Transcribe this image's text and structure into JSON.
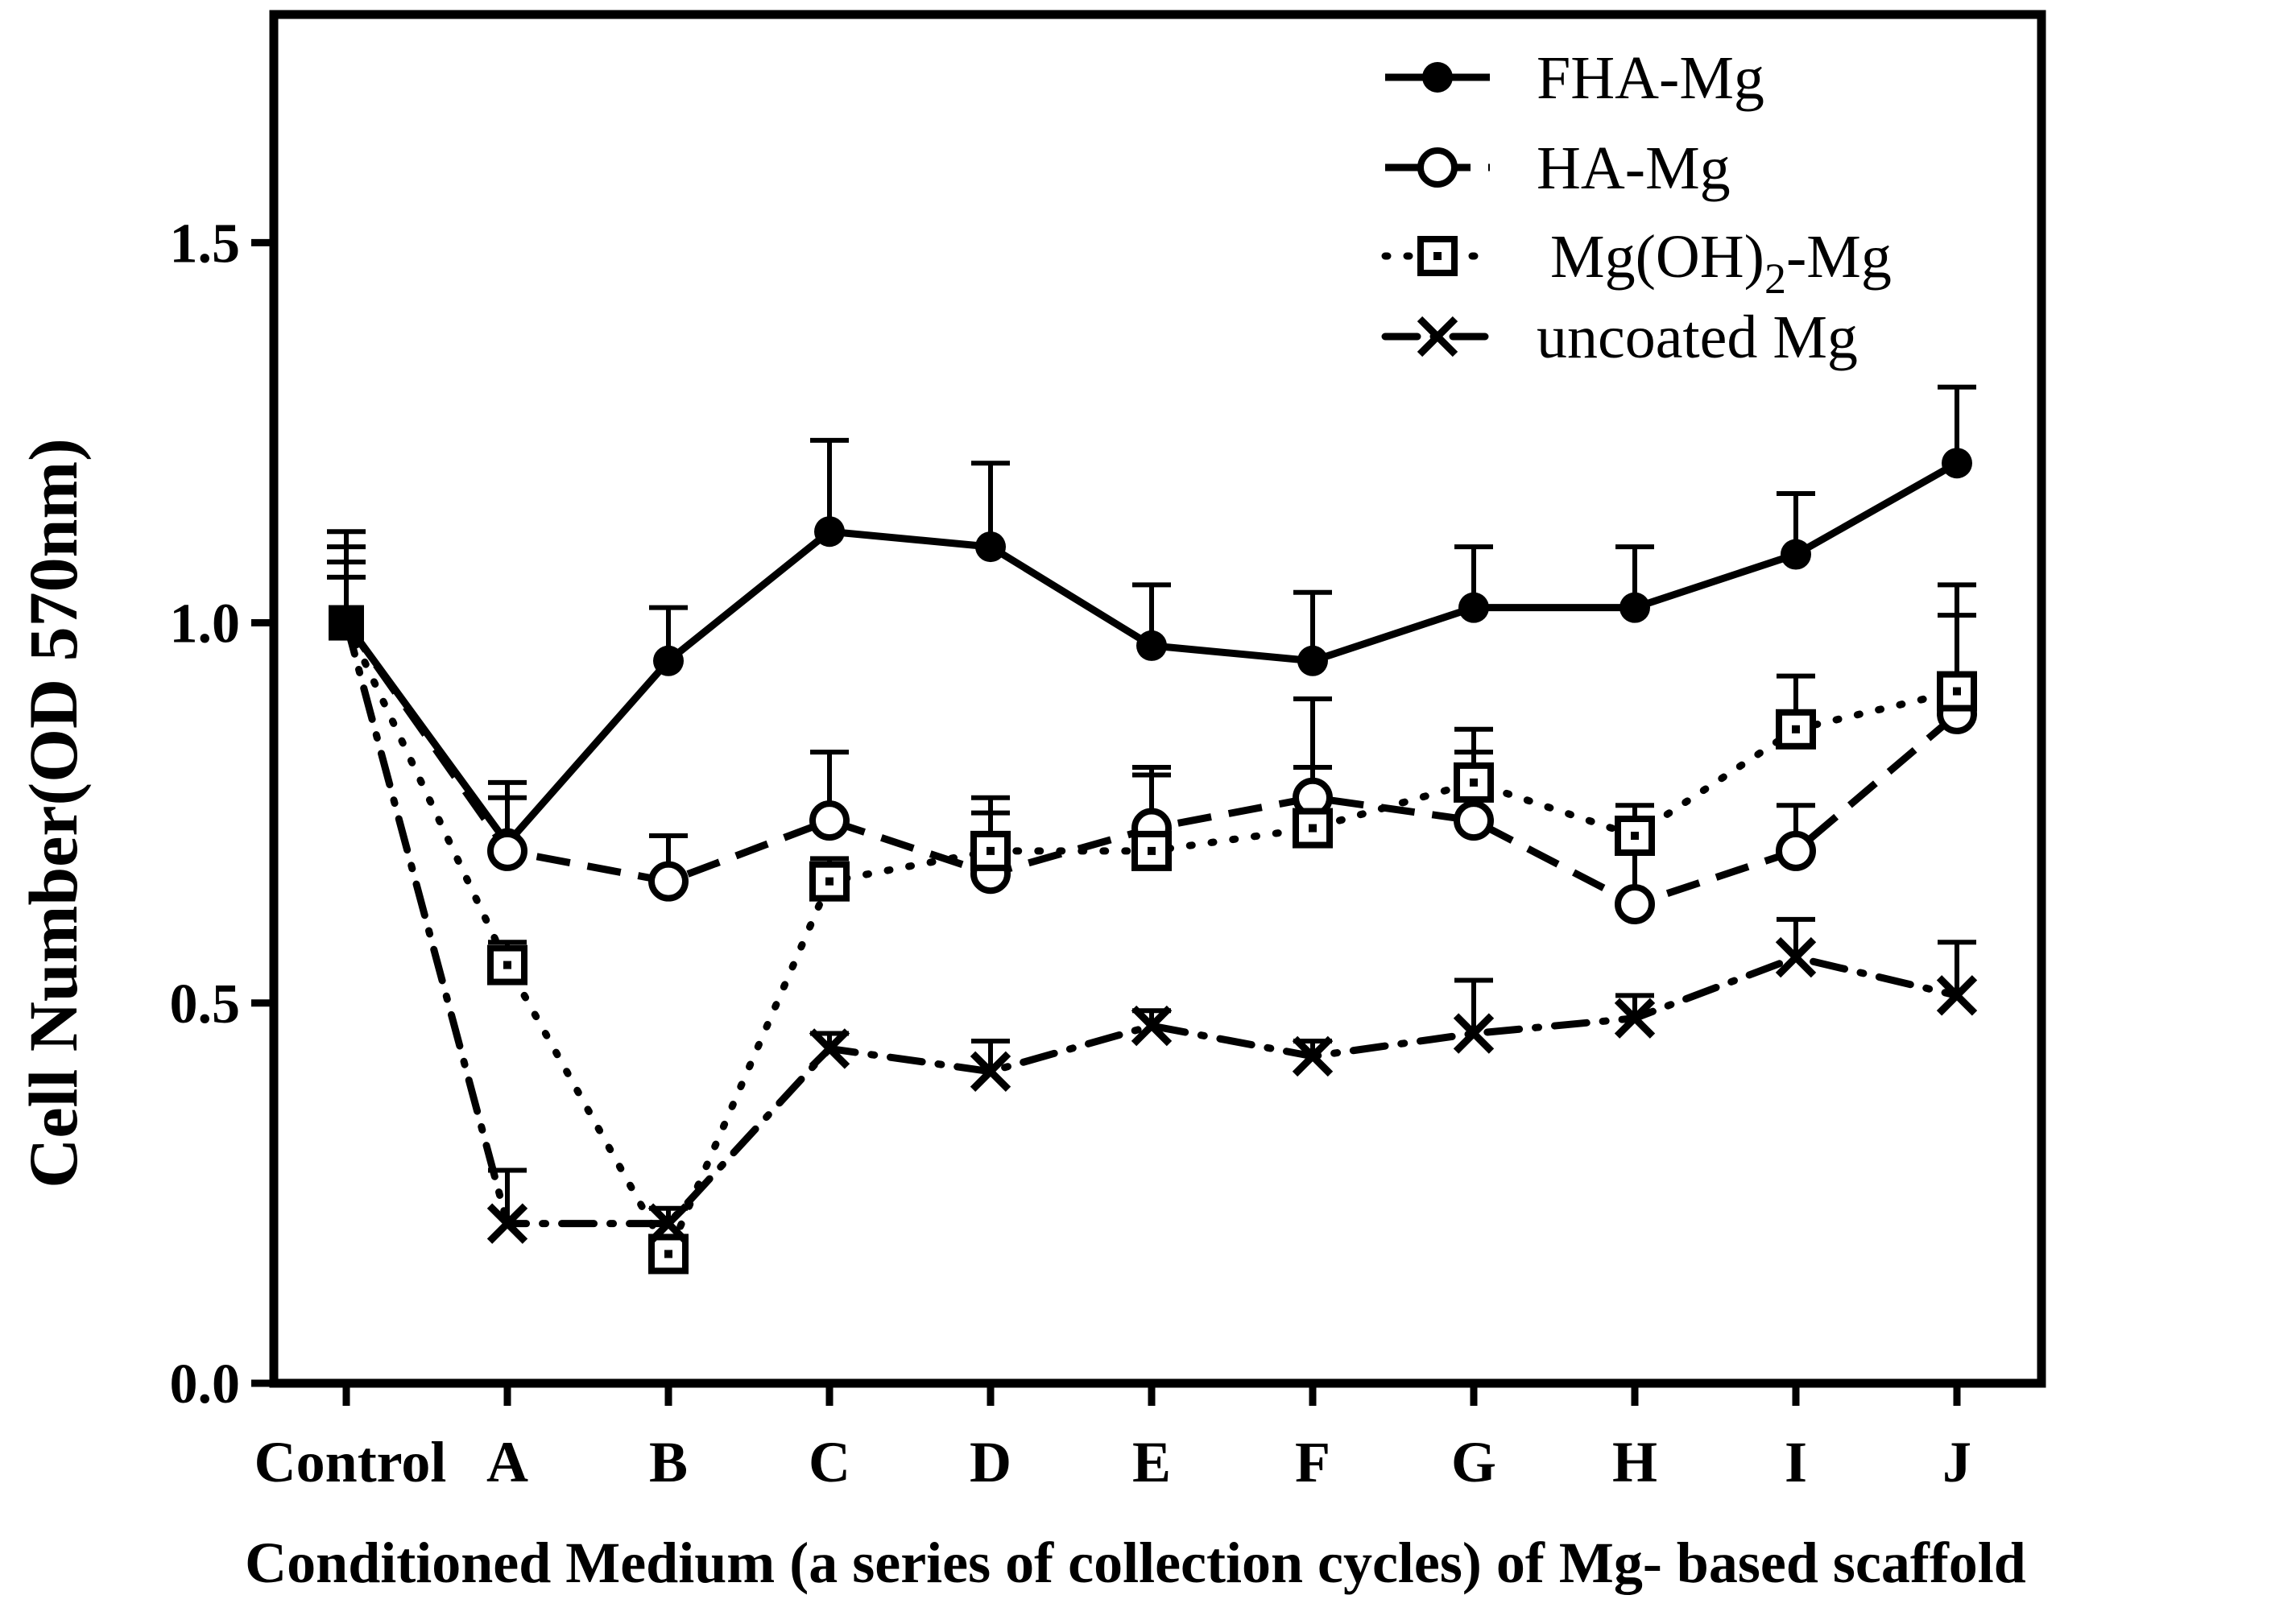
{
  "chart_data": {
    "type": "line",
    "title": "",
    "xlabel": "Conditioned Medium (a series of collection cycles) of Mg- based scaffold",
    "ylabel": "Cell Number(OD 570nm)",
    "categories": [
      "Control",
      "A",
      "B",
      "C",
      "D",
      "E",
      "F",
      "G",
      "H",
      "I",
      "J"
    ],
    "ylim": [
      0,
      1.8
    ],
    "yticks": [
      {
        "value": 0.0,
        "label": "0.0"
      },
      {
        "value": 0.5,
        "label": "0.5"
      },
      {
        "value": 1.0,
        "label": "1.0"
      },
      {
        "value": 1.5,
        "label": "1.5"
      }
    ],
    "grid": false,
    "legend_position": "top-right",
    "series": [
      {
        "name": "FHA-Mg",
        "marker": "filled-circle",
        "line": "solid",
        "values": [
          1.0,
          0.71,
          0.95,
          1.12,
          1.1,
          0.97,
          0.95,
          1.02,
          1.02,
          1.09,
          1.21
        ],
        "errors": [
          0.12,
          0.06,
          0.07,
          0.12,
          0.11,
          0.08,
          0.09,
          0.08,
          0.08,
          0.08,
          0.1
        ]
      },
      {
        "name": "HA-Mg",
        "marker": "open-circle",
        "line": "dashed",
        "values": [
          1.0,
          0.7,
          0.66,
          0.74,
          0.67,
          0.73,
          0.77,
          0.74,
          0.63,
          0.7,
          0.88
        ],
        "errors": [
          0.1,
          0.09,
          0.06,
          0.09,
          0.08,
          0.08,
          0.04,
          0.09,
          0.08,
          0.06,
          0.13
        ]
      },
      {
        "name": "Mg(OH)2-Mg",
        "legend_main": "Mg(OH)",
        "legend_sub": "2",
        "legend_suffix": "-Mg",
        "marker": "dotted-square",
        "line": "dotted",
        "values": [
          1.0,
          0.55,
          0.17,
          0.66,
          0.7,
          0.7,
          0.73,
          0.79,
          0.72,
          0.86,
          0.91
        ],
        "errors": [
          0.08,
          0.03,
          0.02,
          0.03,
          0.07,
          0.1,
          0.17,
          0.07,
          0.04,
          0.07,
          0.14
        ]
      },
      {
        "name": "uncoated Mg",
        "marker": "cross",
        "line": "dash-dot",
        "values": [
          1.0,
          0.21,
          0.21,
          0.44,
          0.41,
          0.47,
          0.43,
          0.46,
          0.48,
          0.56,
          0.51
        ],
        "errors": [
          0.06,
          0.07,
          0.02,
          0.02,
          0.04,
          0.02,
          0.02,
          0.07,
          0.03,
          0.05,
          0.07
        ]
      }
    ]
  }
}
